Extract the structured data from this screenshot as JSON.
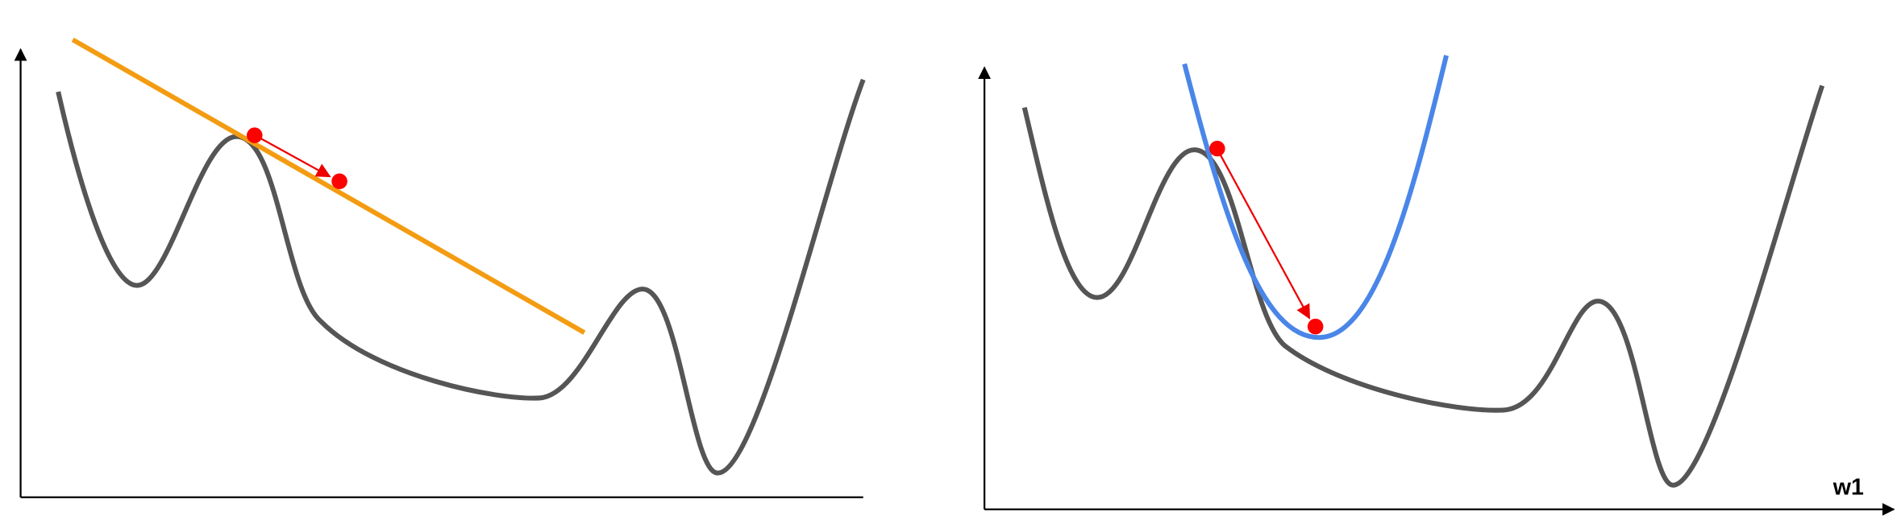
{
  "axis_label": "w1"
}
